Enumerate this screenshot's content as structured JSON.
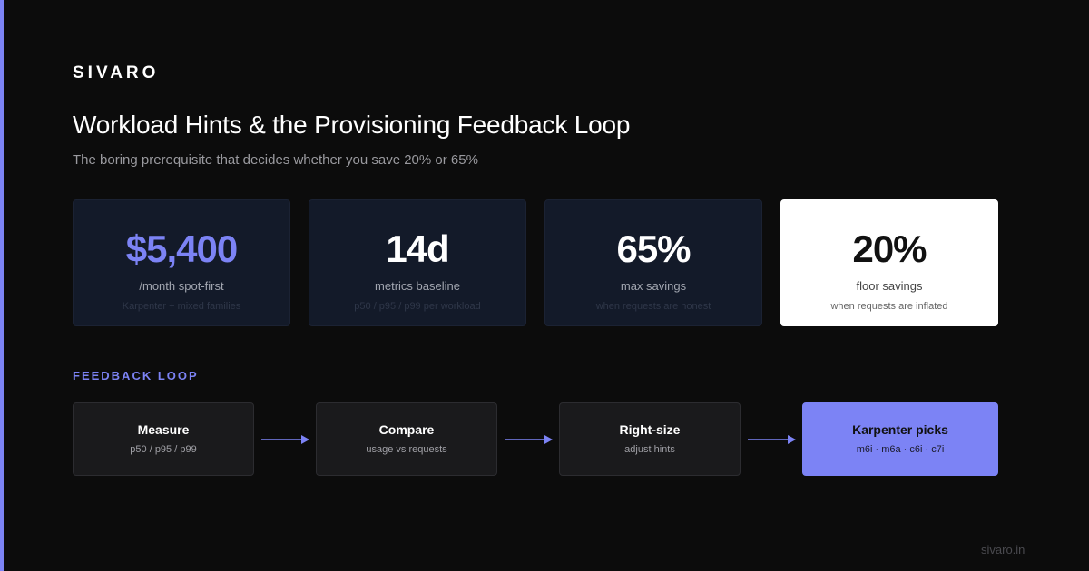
{
  "brand": "SIVARO",
  "title": "Workload Hints & the Provisioning Feedback Loop",
  "subtitle": "The boring prerequisite that decides whether you save 20% or 65%",
  "stats": [
    {
      "value": "$5,400",
      "label": "/month spot-first",
      "note": "Karpenter + mixed families"
    },
    {
      "value": "14d",
      "label": "metrics baseline",
      "note": "p50 / p95 / p99 per workload"
    },
    {
      "value": "65%",
      "label": "max savings",
      "note": "when requests are honest"
    },
    {
      "value": "20%",
      "label": "floor savings",
      "note": "when requests are inflated"
    }
  ],
  "section_label": "FEEDBACK LOOP",
  "loop": [
    {
      "title": "Measure",
      "sub": "p50 / p95 / p99"
    },
    {
      "title": "Compare",
      "sub": "usage vs requests"
    },
    {
      "title": "Right-size",
      "sub": "adjust hints"
    },
    {
      "title": "Karpenter picks",
      "sub": "m6i · m6a · c6i · c7i"
    }
  ],
  "footer": "sivaro.in",
  "colors": {
    "accent": "#7c83f5",
    "background": "#0c0c0c",
    "card": "#131a29"
  }
}
